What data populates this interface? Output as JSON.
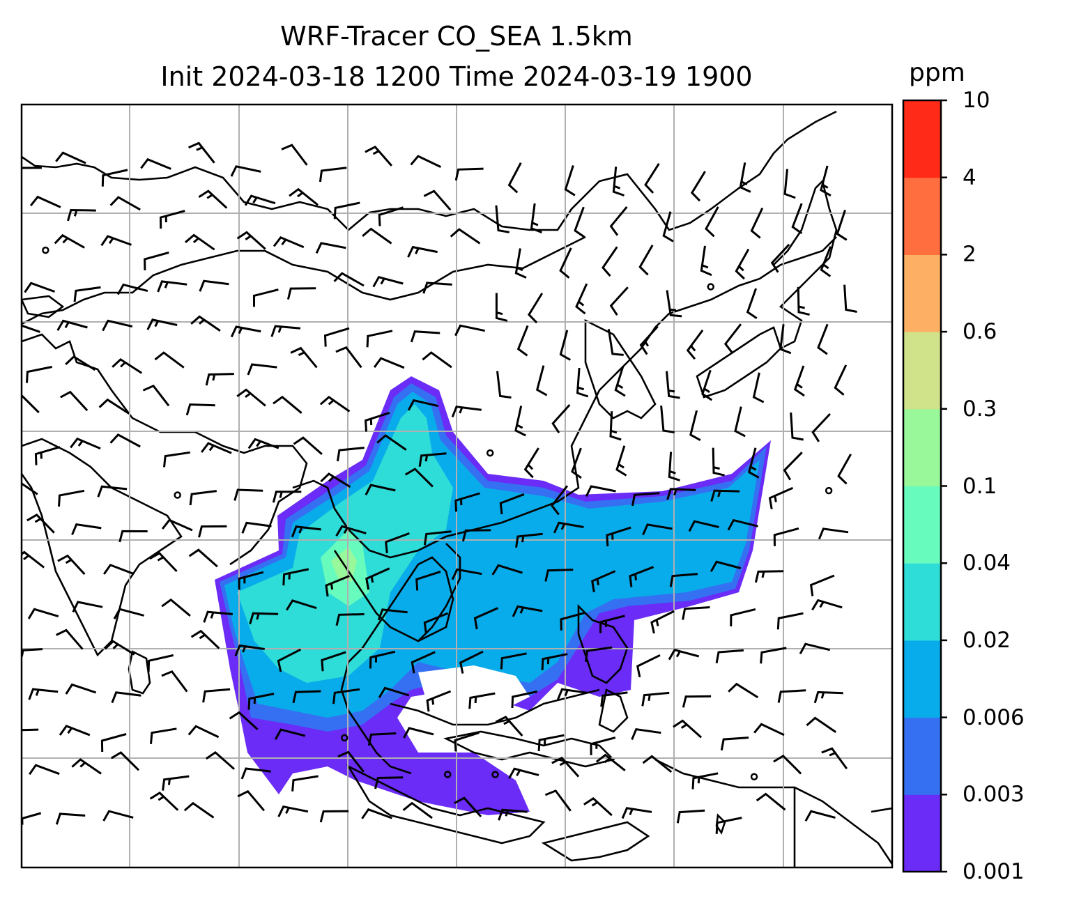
{
  "title": {
    "line1": "WRF-Tracer CO_SEA 1.5km",
    "line2": "Init 2024-03-18 1200 Time 2024-03-19 1900"
  },
  "colorbar": {
    "unit": "ppm",
    "levels": [
      "0.001",
      "0.003",
      "0.006",
      "0.02",
      "0.04",
      "0.1",
      "0.3",
      "0.6",
      "2",
      "4",
      "10"
    ],
    "colors": [
      "#6a2cf6",
      "#3570f2",
      "#09acea",
      "#2edcd8",
      "#67fbbd",
      "#99f89a",
      "#d0e28a",
      "#fdb064",
      "#ff6e3e",
      "#ff2a17"
    ]
  },
  "map": {
    "grid": true,
    "field": "CO tracer concentration",
    "overlay": "wind barbs",
    "coastlines": true
  }
}
